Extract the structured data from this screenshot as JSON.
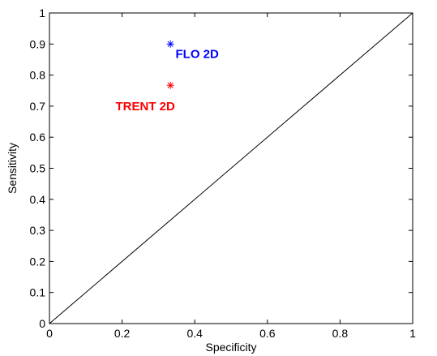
{
  "chart_data": {
    "type": "scatter",
    "title": "",
    "xlabel": "Specificity",
    "ylabel": "Sensitivity",
    "xlim": [
      0,
      1
    ],
    "ylim": [
      0,
      1
    ],
    "x_ticks": [
      0,
      0.2,
      0.4,
      0.6,
      0.8,
      1
    ],
    "x_tick_labels": [
      "0",
      "0.2",
      "0.4",
      "0.6",
      "0.8",
      "1"
    ],
    "y_ticks": [
      0,
      0.1,
      0.2,
      0.3,
      0.4,
      0.5,
      0.6,
      0.7,
      0.8,
      0.9,
      1
    ],
    "y_tick_labels": [
      "0",
      "0.1",
      "0.2",
      "0.3",
      "0.4",
      "0.5",
      "0.6",
      "0.7",
      "0.8",
      "0.9",
      "1"
    ],
    "grid": false,
    "reference_line": {
      "from": [
        0,
        0
      ],
      "to": [
        1,
        1
      ],
      "color": "#000000"
    },
    "points": [
      {
        "label": "FLO 2D",
        "x": 0.333,
        "y": 0.9,
        "marker": "asterisk",
        "color": "#0000ff"
      },
      {
        "label": "TRENT 2D",
        "x": 0.333,
        "y": 0.767,
        "marker": "asterisk",
        "color": "#ff0000"
      }
    ]
  }
}
